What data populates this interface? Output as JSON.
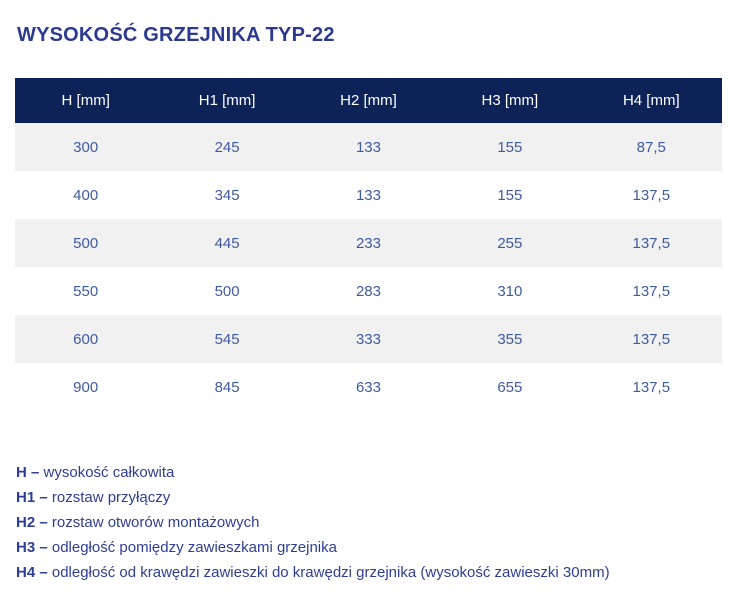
{
  "title": "WYSOKOŚĆ GRZEJNIKA TYP-22",
  "table": {
    "headers": [
      "H [mm]",
      "H1 [mm]",
      "H2 [mm]",
      "H3 [mm]",
      "H4 [mm]"
    ],
    "rows": [
      [
        "300",
        "245",
        "133",
        "155",
        "87,5"
      ],
      [
        "400",
        "345",
        "133",
        "155",
        "137,5"
      ],
      [
        "500",
        "445",
        "233",
        "255",
        "137,5"
      ],
      [
        "550",
        "500",
        "283",
        "310",
        "137,5"
      ],
      [
        "600",
        "545",
        "333",
        "355",
        "137,5"
      ],
      [
        "900",
        "845",
        "633",
        "655",
        "137,5"
      ]
    ]
  },
  "legend": {
    "items": [
      {
        "symbol": "H –",
        "description": "wysokość całkowita"
      },
      {
        "symbol": "H1 –",
        "description": "rozstaw przyłączy"
      },
      {
        "symbol": "H2 –",
        "description": "rozstaw otworów montażowych"
      },
      {
        "symbol": "H3 –",
        "description": "odległość pomiędzy zawieszkami grzejnika"
      },
      {
        "symbol": "H4 –",
        "description": "odległość od krawędzi zawieszki do krawędzi grzejnika (wysokość zawieszki 30mm)"
      }
    ]
  },
  "colors": {
    "header_bg": "#0d2257",
    "title_text": "#2b3990",
    "cell_text": "#3f5b9f",
    "legend_text": "#2e3e96",
    "row_alt_bg": "#f1f1f2"
  }
}
